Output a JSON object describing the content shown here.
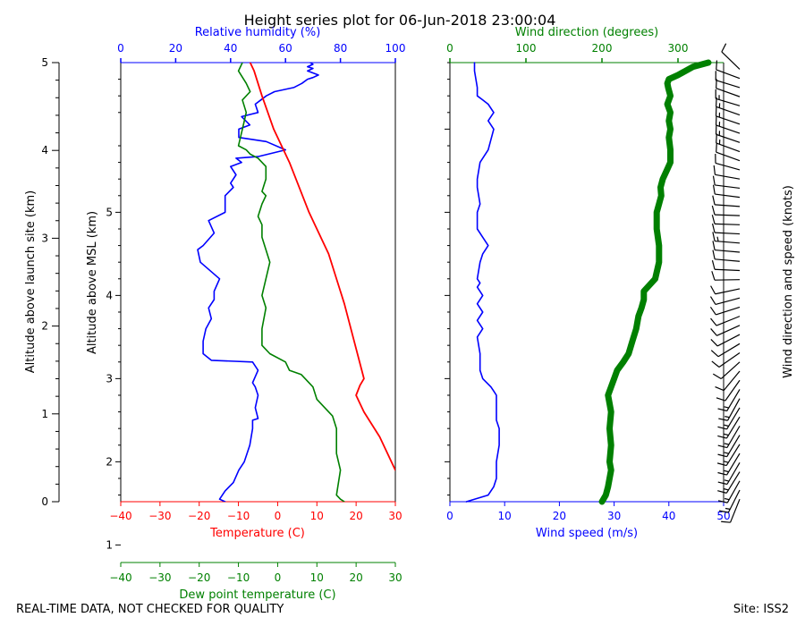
{
  "chart_data": {
    "type": "line",
    "title": "Height series plot for 06-Jun-2018 23:00:04",
    "left_panel": {
      "ylabel": "Altitude above MSL (km)",
      "ylim": [
        1.52,
        6.8
      ],
      "ytick_labels": [
        "1",
        "2",
        "3",
        "4",
        "5"
      ],
      "temperature": {
        "name": "Temperature",
        "color": "#ff0000",
        "xlabel": "Temperature (C)",
        "xlim": [
          -40,
          30
        ],
        "x": [
          30,
          26,
          22,
          20,
          21,
          22,
          17,
          13,
          8,
          3,
          -1,
          -4,
          -6,
          -7
        ],
        "y": [
          1.9,
          2.3,
          2.6,
          2.8,
          2.92,
          3.0,
          3.9,
          4.5,
          5.0,
          5.6,
          6.0,
          6.4,
          6.7,
          6.8
        ]
      },
      "dewpoint": {
        "name": "Dew point temperature",
        "color": "#008000",
        "xlabel": "Dew point temperature (C)",
        "xlim": [
          -40,
          30
        ],
        "x": [
          17,
          16,
          15,
          16,
          15,
          15,
          14,
          12,
          10,
          9,
          6,
          3,
          2,
          -2,
          -4,
          -4,
          -3,
          -4,
          -3,
          -2,
          -3,
          -4,
          -4,
          -5,
          -4,
          -3,
          -4,
          -3,
          -3,
          -5,
          -7,
          -8,
          -10,
          -9,
          -8,
          -9,
          -7,
          -8,
          -10,
          -9
        ],
        "y": [
          1.52,
          1.55,
          1.6,
          1.9,
          2.1,
          2.4,
          2.55,
          2.65,
          2.75,
          2.9,
          3.05,
          3.1,
          3.2,
          3.3,
          3.4,
          3.6,
          3.85,
          4.0,
          4.2,
          4.4,
          4.55,
          4.7,
          4.85,
          4.95,
          5.1,
          5.2,
          5.25,
          5.4,
          5.55,
          5.65,
          5.7,
          5.75,
          5.8,
          6.0,
          6.2,
          6.35,
          6.45,
          6.55,
          6.7,
          6.8
        ]
      },
      "humidity": {
        "name": "Relative humidity",
        "color": "#0000ff",
        "xlabel": "Relative humidity (%)",
        "xlim": [
          0,
          100
        ],
        "ticks": [
          0,
          20,
          40,
          60,
          80,
          100
        ],
        "x": [
          38,
          36,
          37,
          38,
          41,
          43,
          45,
          47,
          48,
          48,
          50,
          49,
          50,
          49,
          48,
          50,
          48,
          33,
          30,
          30,
          31,
          33,
          32,
          34,
          34,
          36,
          29,
          28,
          30,
          34,
          32,
          38,
          38,
          41,
          40,
          42,
          40,
          44,
          42,
          50,
          60,
          53,
          43,
          43,
          47,
          44,
          50,
          49,
          51,
          53,
          56,
          63,
          66,
          68,
          70,
          72,
          68,
          70,
          68,
          70,
          69
        ],
        "y": [
          1.52,
          1.55,
          1.6,
          1.65,
          1.75,
          1.9,
          2.0,
          2.2,
          2.4,
          2.5,
          2.52,
          2.65,
          2.8,
          2.9,
          2.95,
          3.1,
          3.2,
          3.22,
          3.3,
          3.45,
          3.6,
          3.72,
          3.85,
          3.95,
          4.05,
          4.2,
          4.4,
          4.55,
          4.6,
          4.75,
          4.9,
          5.0,
          5.2,
          5.3,
          5.35,
          5.45,
          5.55,
          5.6,
          5.65,
          5.67,
          5.75,
          5.85,
          5.9,
          6.0,
          6.05,
          6.15,
          6.2,
          6.3,
          6.35,
          6.4,
          6.45,
          6.5,
          6.55,
          6.6,
          6.62,
          6.65,
          6.7,
          6.73,
          6.75,
          6.78,
          6.8
        ]
      }
    },
    "left_outer_axis": {
      "ylabel": "Altitude above launch site (km)",
      "ylim": [
        0,
        5
      ],
      "ytick_labels": [
        "0",
        "1",
        "2",
        "3",
        "4",
        "5"
      ]
    },
    "right_panel": {
      "wind_speed": {
        "name": "Wind speed",
        "color": "#0000ff",
        "xlabel": "Wind speed (m/s)",
        "xlim": [
          0,
          50
        ],
        "ticks": [
          0,
          10,
          20,
          30,
          40,
          50
        ],
        "x": [
          3,
          7,
          8,
          8.5,
          8.5,
          9,
          9,
          8.5,
          8.5,
          8.5,
          8,
          7.5,
          6,
          5.5,
          5.5,
          5,
          6,
          5,
          6,
          5,
          6,
          5,
          5.5,
          5,
          5.5,
          6,
          7,
          6,
          5,
          5,
          5.5,
          5,
          5,
          5.5,
          7,
          8,
          7,
          8,
          7,
          6,
          5,
          5,
          4.5,
          4.5
        ],
        "y": [
          1.52,
          1.6,
          1.7,
          1.8,
          2.0,
          2.2,
          2.4,
          2.5,
          2.7,
          2.8,
          2.85,
          2.9,
          3.0,
          3.1,
          3.3,
          3.5,
          3.6,
          3.7,
          3.8,
          3.9,
          4.0,
          4.1,
          4.15,
          4.2,
          4.4,
          4.5,
          4.6,
          4.7,
          4.8,
          5.0,
          5.1,
          5.3,
          5.4,
          5.6,
          5.75,
          6.0,
          6.1,
          6.2,
          6.3,
          6.35,
          6.4,
          6.5,
          6.7,
          6.8
        ]
      },
      "wind_direction": {
        "name": "Wind direction",
        "color": "#008000",
        "xlabel": "Wind direction (degrees)",
        "xlim": [
          0,
          360
        ],
        "ticks": [
          0,
          100,
          200,
          300
        ],
        "x": [
          200,
          205,
          208,
          210,
          212,
          210,
          212,
          210,
          212,
          210,
          208,
          212,
          216,
          220,
          228,
          235,
          240,
          245,
          248,
          252,
          255,
          255,
          270,
          275,
          275,
          272,
          272,
          275,
          278,
          277,
          280,
          285,
          290,
          290,
          288,
          290,
          288,
          290,
          286,
          290,
          287,
          286,
          288,
          300,
          320,
          340
        ],
        "y": [
          1.52,
          1.6,
          1.7,
          1.8,
          1.9,
          2.0,
          2.2,
          2.4,
          2.6,
          2.7,
          2.8,
          2.9,
          3.0,
          3.1,
          3.2,
          3.3,
          3.45,
          3.6,
          3.75,
          3.85,
          3.95,
          4.05,
          4.2,
          4.4,
          4.6,
          4.8,
          5.0,
          5.1,
          5.2,
          5.3,
          5.4,
          5.5,
          5.6,
          5.75,
          5.9,
          6.0,
          6.1,
          6.2,
          6.3,
          6.4,
          6.5,
          6.55,
          6.6,
          6.65,
          6.75,
          6.8
        ]
      }
    },
    "barbs_label": "Wind direction and speed (knots)"
  },
  "footer": {
    "disclaimer": "REAL-TIME DATA, NOT CHECKED FOR QUALITY",
    "site": "Site: ISS2"
  }
}
